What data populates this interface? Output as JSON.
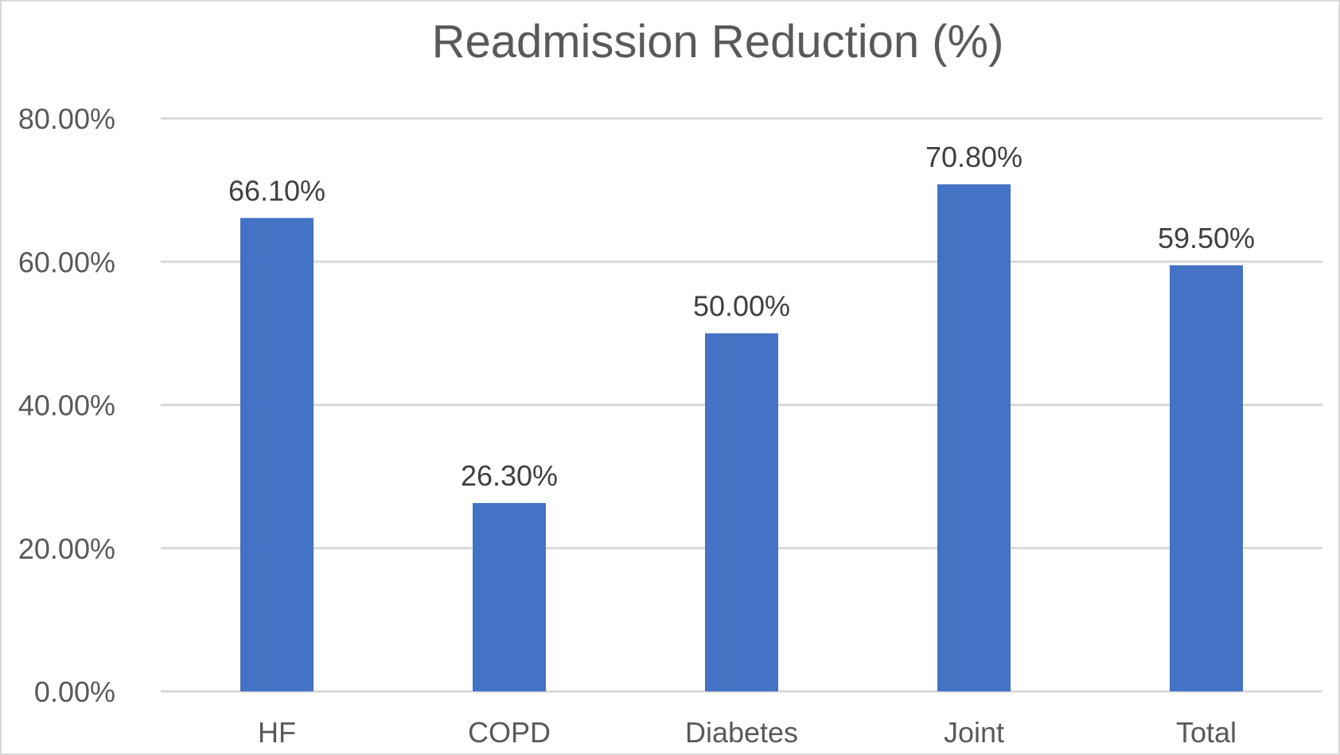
{
  "chart_data": {
    "type": "bar",
    "title": "Readmission Reduction (%)",
    "xlabel": "",
    "ylabel": "",
    "categories": [
      "HF",
      "COPD",
      "Diabetes",
      "Joint",
      "Total"
    ],
    "values": [
      66.1,
      26.3,
      50.0,
      70.8,
      59.5
    ],
    "data_labels": [
      "66.10%",
      "26.30%",
      "50.00%",
      "70.80%",
      "59.50%"
    ],
    "ylim": [
      0,
      80
    ],
    "yticks": [
      0,
      20,
      40,
      60,
      80
    ],
    "ytick_labels": [
      "0.00%",
      "20.00%",
      "40.00%",
      "60.00%",
      "80.00%"
    ],
    "grid": true,
    "legend": "none",
    "bar_color": "#4472C4",
    "grid_color": "#D9D9D9",
    "text_color": "#595959"
  }
}
